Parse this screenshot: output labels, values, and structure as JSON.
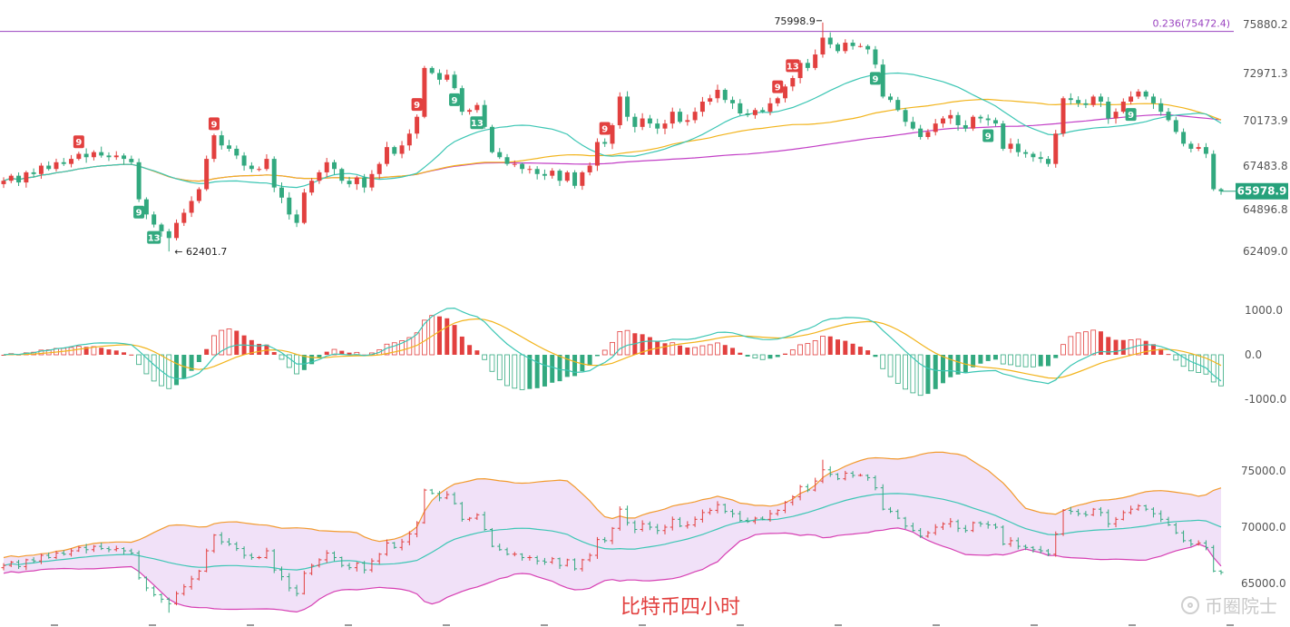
{
  "caption": "比特币四小时",
  "watermark": "币圈院士",
  "colors": {
    "up": "#e2403f",
    "down": "#32a97f",
    "ma_short": "#3cc6b4",
    "ma_mid": "#f2b41c",
    "ma_long": "#c23fc6",
    "fib_line": "#9a43c0",
    "boll_fill": "#f1e1f8",
    "boll_upper": "#f29a2e",
    "boll_lower": "#d63fb3",
    "boll_mid": "#3cc6b4",
    "price_tag": "#26a17b"
  },
  "chart_data": [
    {
      "type": "candlestick",
      "panel": "price",
      "y_ticks": [
        "75880.2",
        "72971.3",
        "70173.9",
        "67483.8",
        "64896.8",
        "62409.0"
      ],
      "ylim": [
        62409.0,
        75880.2
      ],
      "fib_label": "0.236(75472.4)",
      "fib_value": 75472.4,
      "current_price": "65978.9",
      "high_label": "75998.9",
      "low_label": "62401.7",
      "high_value": 75998.9,
      "low_value": 62401.7,
      "td_markers": [
        {
          "label": "9",
          "side": "up",
          "bar": 10
        },
        {
          "label": "9",
          "side": "down",
          "bar": 18
        },
        {
          "label": "13",
          "side": "down",
          "bar": 20
        },
        {
          "label": "9",
          "side": "up",
          "bar": 28
        },
        {
          "label": "9",
          "side": "up",
          "bar": 55
        },
        {
          "label": "9",
          "side": "down",
          "bar": 60
        },
        {
          "label": "13",
          "side": "down",
          "bar": 63
        },
        {
          "label": "9",
          "side": "up",
          "bar": 80
        },
        {
          "label": "9",
          "side": "up",
          "bar": 103
        },
        {
          "label": "13",
          "side": "up",
          "bar": 105
        },
        {
          "label": "9",
          "side": "down",
          "bar": 116
        },
        {
          "label": "9",
          "side": "down",
          "bar": 131
        },
        {
          "label": "9",
          "side": "down",
          "bar": 150
        }
      ],
      "closes": [
        66600,
        66900,
        66500,
        67100,
        67000,
        67500,
        67300,
        67700,
        67600,
        67900,
        68200,
        68000,
        68300,
        68100,
        68000,
        68100,
        67900,
        67700,
        65500,
        64600,
        64000,
        63600,
        63200,
        64100,
        64700,
        65400,
        66100,
        67900,
        69300,
        68700,
        68500,
        68100,
        67500,
        67300,
        67300,
        67900,
        66200,
        65600,
        64600,
        64100,
        65900,
        66600,
        67100,
        67700,
        67300,
        66600,
        66400,
        66800,
        66200,
        67000,
        67600,
        68600,
        68200,
        68700,
        69400,
        70400,
        73300,
        73000,
        72600,
        72900,
        72100,
        70700,
        70800,
        71100,
        69800,
        68300,
        68000,
        67600,
        67600,
        67300,
        67300,
        67000,
        66900,
        67200,
        66600,
        67100,
        66300,
        67100,
        67500,
        68900,
        68800,
        69900,
        71600,
        70400,
        69800,
        70300,
        70000,
        69700,
        70000,
        70700,
        70100,
        70200,
        70700,
        71300,
        71500,
        72000,
        71400,
        71200,
        70600,
        70500,
        70800,
        70700,
        71200,
        71500,
        72200,
        72700,
        73600,
        73300,
        74100,
        75100,
        74700,
        74300,
        74800,
        74600,
        74600,
        74400,
        73500,
        71600,
        71400,
        70800,
        70100,
        69700,
        69200,
        69500,
        70000,
        70300,
        70500,
        69900,
        69700,
        70400,
        70300,
        70200,
        70000,
        68500,
        68800,
        68300,
        68200,
        68000,
        67900,
        67600,
        69400,
        71500,
        71400,
        71200,
        71100,
        71600,
        71300,
        70300,
        70700,
        71300,
        71600,
        71900,
        71600,
        71200,
        70700,
        70200,
        69500,
        68800,
        68500,
        68600,
        68200,
        66100,
        65979
      ]
    },
    {
      "type": "macd",
      "panel": "macd",
      "y_ticks": [
        "1000.0",
        "0.0",
        "-1000.0"
      ],
      "ylim": [
        -1000,
        1000
      ]
    },
    {
      "type": "bollinger",
      "panel": "boll",
      "y_ticks": [
        "75000.0",
        "70000.0",
        "65000.0"
      ],
      "ylim": [
        65000,
        75000
      ]
    }
  ]
}
